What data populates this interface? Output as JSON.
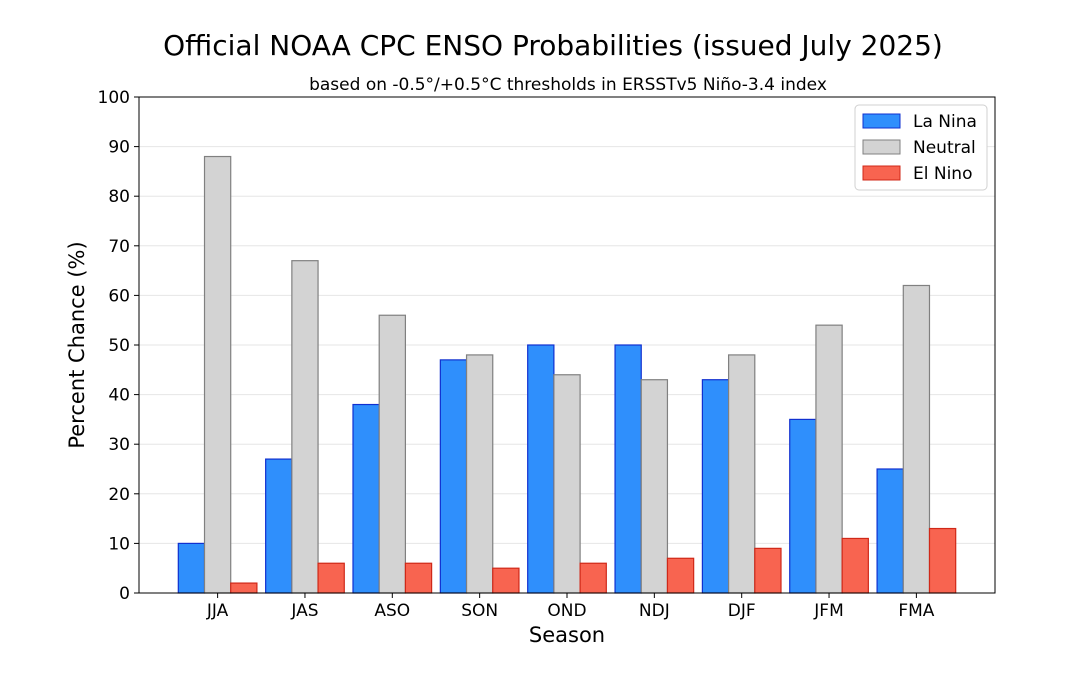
{
  "chart_data": {
    "type": "bar",
    "title": "Official NOAA CPC ENSO Probabilities (issued July 2025)",
    "subtitle": "based on -0.5°/+0.5°C thresholds in ERSSTv5 Niño-3.4 index",
    "xlabel": "Season",
    "ylabel": "Percent Chance (%)",
    "ylim": [
      0,
      100
    ],
    "yticks": [
      0,
      10,
      20,
      30,
      40,
      50,
      60,
      70,
      80,
      90,
      100
    ],
    "grid": "horizontal",
    "legend_position": "top-right",
    "categories": [
      "JJA",
      "JAS",
      "ASO",
      "SON",
      "OND",
      "NDJ",
      "DJF",
      "JFM",
      "FMA"
    ],
    "series": [
      {
        "name": "La Nina",
        "color": "#2f8ffc",
        "edge": "#1030d0",
        "values": [
          10,
          27,
          38,
          47,
          50,
          50,
          43,
          35,
          25
        ]
      },
      {
        "name": "Neutral",
        "color": "#d3d3d3",
        "edge": "#808080",
        "values": [
          88,
          67,
          56,
          48,
          44,
          43,
          48,
          54,
          62
        ]
      },
      {
        "name": "El Nino",
        "color": "#f86450",
        "edge": "#d02818",
        "values": [
          2,
          6,
          6,
          5,
          6,
          7,
          9,
          11,
          13
        ]
      }
    ]
  }
}
